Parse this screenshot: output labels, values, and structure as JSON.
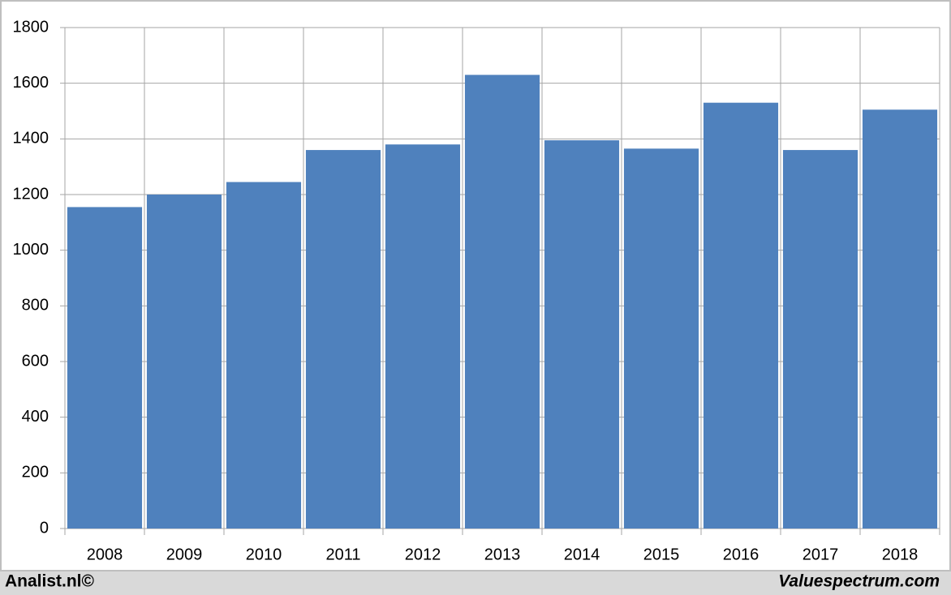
{
  "chart_data": {
    "type": "bar",
    "categories": [
      "2008",
      "2009",
      "2010",
      "2011",
      "2012",
      "2013",
      "2014",
      "2015",
      "2016",
      "2017",
      "2018"
    ],
    "values": [
      1155,
      1200,
      1245,
      1360,
      1380,
      1630,
      1395,
      1365,
      1530,
      1360,
      1505
    ],
    "color": "#4f81bd",
    "ylim": [
      0,
      1800
    ],
    "yticks": [
      0,
      200,
      400,
      600,
      800,
      1000,
      1200,
      1400,
      1600,
      1800
    ],
    "grid": true
  },
  "footer": {
    "left": "Analist.nl©",
    "right": "Valuespectrum.com"
  }
}
